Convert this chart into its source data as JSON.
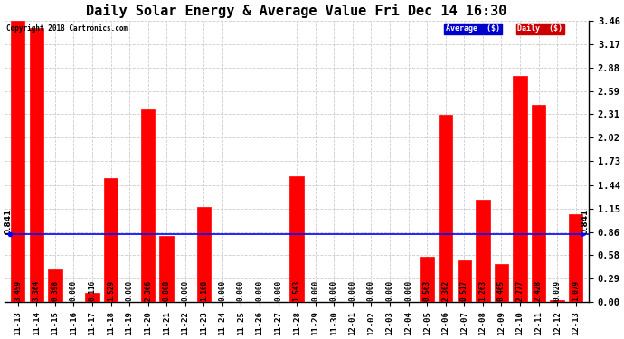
{
  "title": "Daily Solar Energy & Average Value Fri Dec 14 16:30",
  "copyright": "Copyright 2018 Cartronics.com",
  "categories": [
    "11-13",
    "11-14",
    "11-15",
    "11-16",
    "11-17",
    "11-18",
    "11-19",
    "11-20",
    "11-21",
    "11-22",
    "11-23",
    "11-24",
    "11-25",
    "11-26",
    "11-27",
    "11-28",
    "11-29",
    "11-30",
    "12-01",
    "12-02",
    "12-03",
    "12-04",
    "12-05",
    "12-06",
    "12-07",
    "12-08",
    "12-09",
    "12-10",
    "12-11",
    "12-12",
    "12-13"
  ],
  "values": [
    3.459,
    3.364,
    0.398,
    0.0,
    0.116,
    1.529,
    0.0,
    2.366,
    0.808,
    0.0,
    1.168,
    0.0,
    0.0,
    0.0,
    0.0,
    1.543,
    0.0,
    0.0,
    0.0,
    0.0,
    0.0,
    0.0,
    0.563,
    2.302,
    0.517,
    1.263,
    0.465,
    2.777,
    2.428,
    0.029,
    1.079
  ],
  "average": 0.841,
  "ylim": [
    0.0,
    3.46
  ],
  "yticks": [
    0.0,
    0.29,
    0.58,
    0.86,
    1.15,
    1.44,
    1.73,
    2.02,
    2.31,
    2.59,
    2.88,
    3.17,
    3.46
  ],
  "bar_color": "#ff0000",
  "avg_line_color": "#0000ff",
  "bg_color": "#ffffff",
  "grid_color": "#cccccc",
  "title_fontsize": 11,
  "legend_avg_bg": "#0000cc",
  "legend_daily_bg": "#cc0000",
  "value_label_fontsize": 5.5,
  "tick_fontsize": 6.5,
  "ytick_fontsize": 7.5
}
